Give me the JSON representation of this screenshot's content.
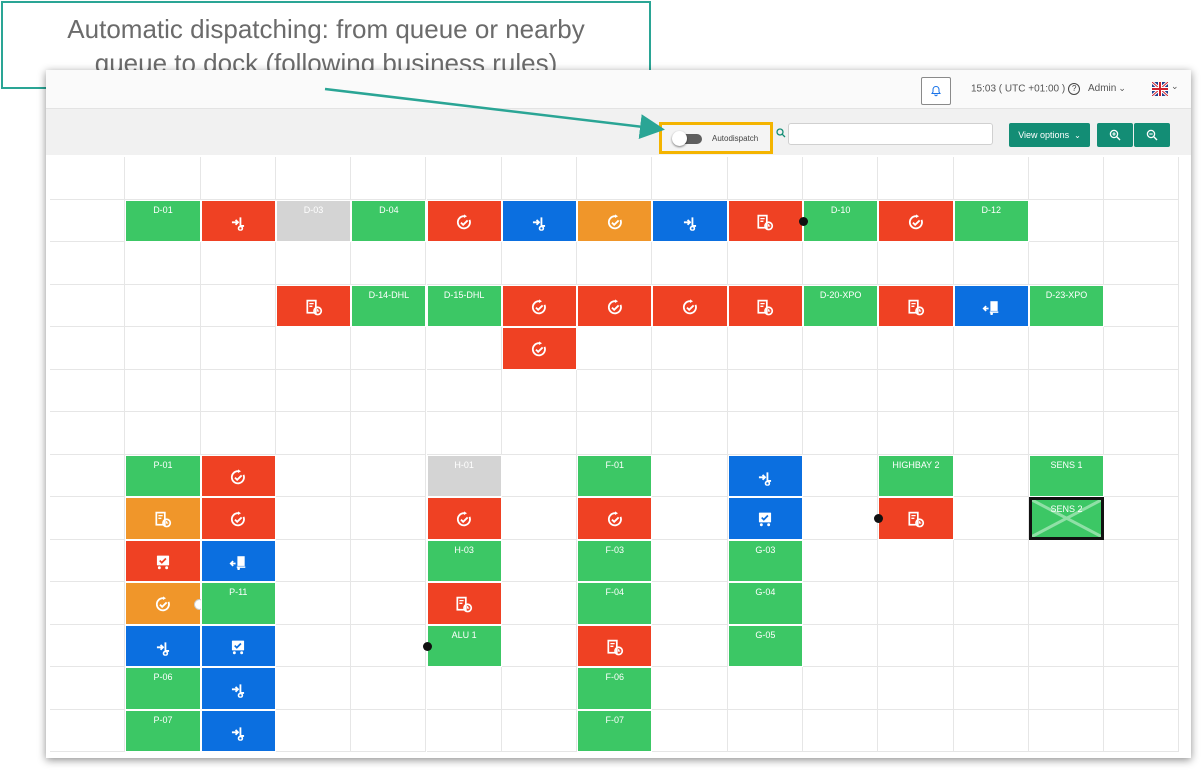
{
  "annotation": {
    "text_line1": "Automatic dispatching:  from queue or nearby",
    "text_line2": "queue to dock (following business rules)",
    "accent_color": "#2aa595"
  },
  "topbar": {
    "bell_icon": "bell-icon",
    "time": "15:03 ( UTC +01:00 )",
    "help_icon": "help-icon",
    "user": "Admin",
    "language_icon": "uk-flag-icon"
  },
  "toolbar": {
    "autodispatch_label": "Autodispatch",
    "autodispatch_on": false,
    "search_value": "",
    "search_placeholder": "",
    "view_options_label": "View options",
    "zoom_in_icon": "zoom-in-icon",
    "zoom_out_icon": "zoom-out-icon"
  },
  "colors": {
    "green": "#3cc765",
    "red": "#ef4123",
    "blue": "#0b6fe0",
    "orange": "#f0962a",
    "gray": "#d4d4d4",
    "highlight": "#f4b400"
  },
  "yard": {
    "columns": 15,
    "rows": 14,
    "slots": [
      {
        "row": 1,
        "col": 1,
        "color": "green",
        "label": "D-01"
      },
      {
        "row": 1,
        "col": 2,
        "color": "red",
        "icon": "dispatch-icon"
      },
      {
        "row": 1,
        "col": 3,
        "color": "gray",
        "label": "D-03"
      },
      {
        "row": 1,
        "col": 4,
        "color": "green",
        "label": "D-04"
      },
      {
        "row": 1,
        "col": 5,
        "color": "red",
        "icon": "check-progress-icon"
      },
      {
        "row": 1,
        "col": 6,
        "color": "blue",
        "icon": "dispatch-icon"
      },
      {
        "row": 1,
        "col": 7,
        "color": "orange",
        "icon": "check-progress-icon"
      },
      {
        "row": 1,
        "col": 8,
        "color": "blue",
        "icon": "dispatch-icon"
      },
      {
        "row": 1,
        "col": 9,
        "color": "red",
        "icon": "schedule-doc-icon"
      },
      {
        "row": 1,
        "col": 10,
        "color": "green",
        "label": "D-10",
        "dot": "left"
      },
      {
        "row": 1,
        "col": 11,
        "color": "red",
        "icon": "check-progress-icon"
      },
      {
        "row": 1,
        "col": 12,
        "color": "green",
        "label": "D-12"
      },
      {
        "row": 3,
        "col": 3,
        "color": "red",
        "icon": "schedule-doc-icon"
      },
      {
        "row": 3,
        "col": 4,
        "color": "green",
        "label": "D-14-DHL"
      },
      {
        "row": 3,
        "col": 5,
        "color": "green",
        "label": "D-15-DHL"
      },
      {
        "row": 3,
        "col": 6,
        "color": "red",
        "icon": "check-progress-icon"
      },
      {
        "row": 3,
        "col": 7,
        "color": "red",
        "icon": "check-progress-icon"
      },
      {
        "row": 3,
        "col": 8,
        "color": "red",
        "icon": "check-progress-icon"
      },
      {
        "row": 3,
        "col": 9,
        "color": "red",
        "icon": "schedule-doc-icon"
      },
      {
        "row": 3,
        "col": 10,
        "color": "green",
        "label": "D-20-XPO"
      },
      {
        "row": 3,
        "col": 11,
        "color": "red",
        "icon": "schedule-doc-icon"
      },
      {
        "row": 3,
        "col": 12,
        "color": "blue",
        "icon": "truck-unload-icon"
      },
      {
        "row": 3,
        "col": 13,
        "color": "green",
        "label": "D-23-XPO"
      },
      {
        "row": 4,
        "col": 6,
        "color": "red",
        "icon": "check-progress-icon"
      },
      {
        "row": 7,
        "col": 1,
        "color": "green",
        "label": "P-01"
      },
      {
        "row": 7,
        "col": 2,
        "color": "red",
        "icon": "check-progress-icon"
      },
      {
        "row": 7,
        "col": 5,
        "color": "gray",
        "label": "H-01"
      },
      {
        "row": 7,
        "col": 7,
        "color": "green",
        "label": "F-01"
      },
      {
        "row": 7,
        "col": 9,
        "color": "blue",
        "icon": "dispatch-icon"
      },
      {
        "row": 7,
        "col": 11,
        "color": "green",
        "label": "HIGHBAY 2"
      },
      {
        "row": 7,
        "col": 13,
        "color": "green",
        "label": "SENS 1"
      },
      {
        "row": 8,
        "col": 1,
        "color": "orange",
        "icon": "schedule-doc-icon"
      },
      {
        "row": 8,
        "col": 2,
        "color": "red",
        "icon": "check-progress-icon"
      },
      {
        "row": 8,
        "col": 5,
        "color": "red",
        "icon": "check-progress-icon"
      },
      {
        "row": 8,
        "col": 7,
        "color": "red",
        "icon": "check-progress-icon"
      },
      {
        "row": 8,
        "col": 9,
        "color": "blue",
        "icon": "loaded-truck-icon"
      },
      {
        "row": 8,
        "col": 11,
        "color": "red",
        "icon": "schedule-doc-icon",
        "dot": "left"
      },
      {
        "row": 8,
        "col": 13,
        "color": "green",
        "label": "SENS 2",
        "selected": true,
        "crossed": true
      },
      {
        "row": 9,
        "col": 1,
        "color": "red",
        "icon": "loaded-truck-icon"
      },
      {
        "row": 9,
        "col": 2,
        "color": "blue",
        "icon": "truck-unload-icon"
      },
      {
        "row": 9,
        "col": 5,
        "color": "green",
        "label": "H-03"
      },
      {
        "row": 9,
        "col": 7,
        "color": "green",
        "label": "F-03"
      },
      {
        "row": 9,
        "col": 9,
        "color": "green",
        "label": "G-03"
      },
      {
        "row": 10,
        "col": 1,
        "color": "orange",
        "icon": "check-progress-icon",
        "dot": "right-white"
      },
      {
        "row": 10,
        "col": 2,
        "color": "green",
        "label": "P-11"
      },
      {
        "row": 10,
        "col": 5,
        "color": "red",
        "icon": "schedule-doc-icon"
      },
      {
        "row": 10,
        "col": 7,
        "color": "green",
        "label": "F-04"
      },
      {
        "row": 10,
        "col": 9,
        "color": "green",
        "label": "G-04"
      },
      {
        "row": 11,
        "col": 1,
        "color": "blue",
        "icon": "dispatch-icon"
      },
      {
        "row": 11,
        "col": 2,
        "color": "blue",
        "icon": "loaded-truck-icon"
      },
      {
        "row": 11,
        "col": 5,
        "color": "green",
        "label": "ALU 1",
        "dot": "left"
      },
      {
        "row": 11,
        "col": 7,
        "color": "red",
        "icon": "schedule-doc-icon"
      },
      {
        "row": 11,
        "col": 9,
        "color": "green",
        "label": "G-05"
      },
      {
        "row": 12,
        "col": 1,
        "color": "green",
        "label": "P-06"
      },
      {
        "row": 12,
        "col": 2,
        "color": "blue",
        "icon": "dispatch-icon"
      },
      {
        "row": 12,
        "col": 7,
        "color": "green",
        "label": "F-06"
      },
      {
        "row": 13,
        "col": 1,
        "color": "green",
        "label": "P-07"
      },
      {
        "row": 13,
        "col": 2,
        "color": "blue",
        "icon": "dispatch-icon"
      },
      {
        "row": 13,
        "col": 7,
        "color": "green",
        "label": "F-07"
      }
    ]
  }
}
